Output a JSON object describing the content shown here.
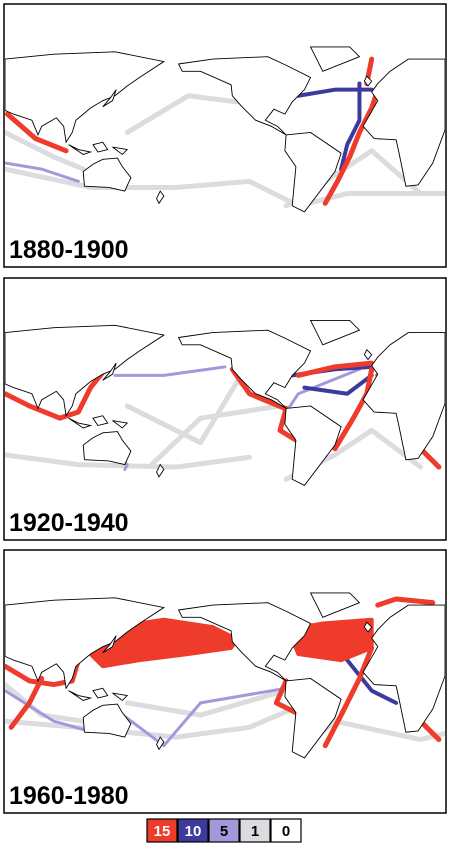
{
  "panels": [
    {
      "label": "1880-1900"
    },
    {
      "label": "1920-1940"
    },
    {
      "label": "1960-1980"
    }
  ],
  "legend": [
    {
      "value": 15,
      "color": "#ee3b2b"
    },
    {
      "value": 10,
      "color": "#3c3a9c"
    },
    {
      "value": 5,
      "color": "#a498dc"
    },
    {
      "value": 1,
      "color": "#dcdce0"
    },
    {
      "value": 0,
      "color": "#ffffff"
    }
  ]
}
